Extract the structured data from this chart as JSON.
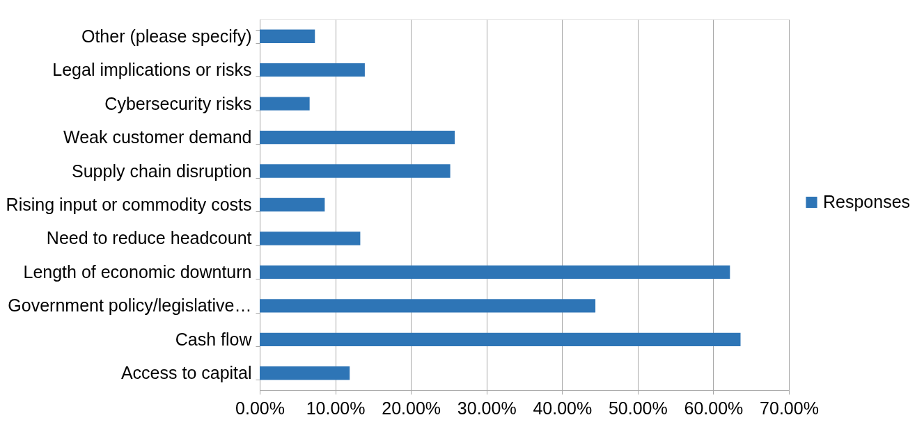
{
  "chart_data": {
    "type": "bar",
    "orientation": "horizontal",
    "categories": [
      "Other (please specify)",
      "Legal implications or risks",
      "Cybersecurity risks",
      "Weak customer demand",
      "Supply chain disruption",
      "Rising input or commodity costs",
      "Need to reduce headcount",
      "Length of economic downturn",
      "Government policy/legislative…",
      "Cash flow",
      "Access to capital"
    ],
    "series": [
      {
        "name": "Responses",
        "color": "#2e75b6",
        "values": [
          7.3,
          13.9,
          6.6,
          25.8,
          25.2,
          8.6,
          13.3,
          62.2,
          44.4,
          63.6,
          11.9
        ]
      }
    ],
    "xlim": [
      0,
      70
    ],
    "xticks": [
      {
        "value": 0,
        "label": "0.00%"
      },
      {
        "value": 10,
        "label": "10.00%"
      },
      {
        "value": 20,
        "label": "20.00%"
      },
      {
        "value": 30,
        "label": "30.00%"
      },
      {
        "value": 40,
        "label": "40.00%"
      },
      {
        "value": 50,
        "label": "50.00%"
      },
      {
        "value": 60,
        "label": "60.00%"
      },
      {
        "value": 70,
        "label": "70.00%"
      }
    ],
    "grid": "x",
    "legend": "right"
  }
}
